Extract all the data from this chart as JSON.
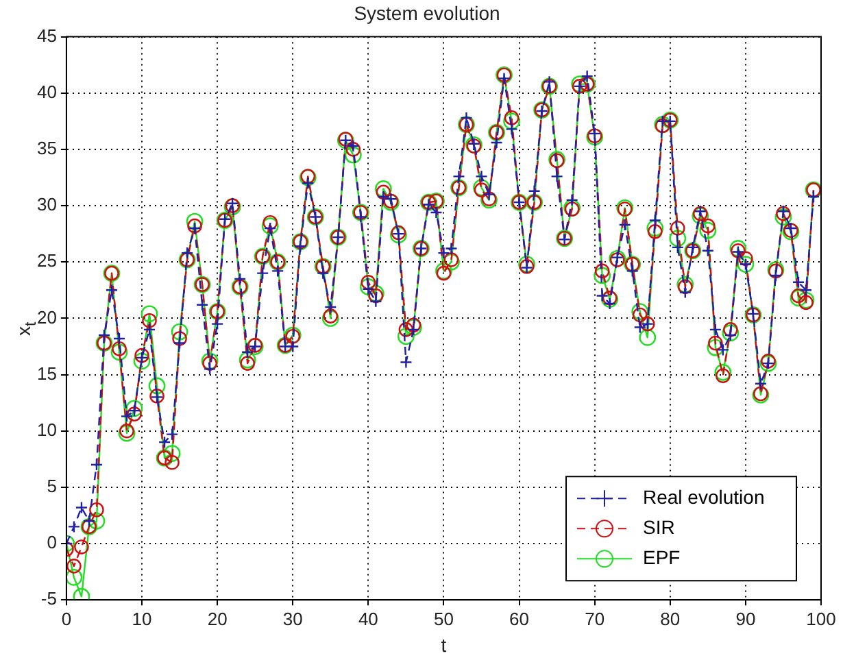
{
  "chart_data": {
    "type": "line",
    "title": "System evolution",
    "xlabel": "t",
    "ylabel": "x$_{t}$",
    "x": [
      0,
      1,
      2,
      3,
      4,
      5,
      6,
      7,
      8,
      9,
      10,
      11,
      12,
      13,
      14,
      15,
      16,
      17,
      18,
      19,
      20,
      21,
      22,
      23,
      24,
      25,
      26,
      27,
      28,
      29,
      30,
      31,
      32,
      33,
      34,
      35,
      36,
      37,
      38,
      39,
      40,
      41,
      42,
      43,
      44,
      45,
      46,
      47,
      48,
      49,
      50,
      51,
      52,
      53,
      54,
      55,
      56,
      57,
      58,
      59,
      60,
      61,
      62,
      63,
      64,
      65,
      66,
      67,
      68,
      69,
      70,
      71,
      72,
      73,
      74,
      75,
      76,
      77,
      78,
      79,
      80,
      81,
      82,
      83,
      84,
      85,
      86,
      87,
      88,
      89,
      90,
      91,
      92,
      93,
      94,
      95,
      96,
      97,
      98,
      99
    ],
    "series": [
      {
        "name": "Real evolution",
        "color": "#1f1fa8",
        "marker": "cross",
        "line_style": "dashed",
        "values": [
          0,
          1.5,
          3.2,
          2,
          7,
          18.5,
          22.5,
          18.2,
          11.3,
          11.8,
          16.5,
          19,
          13,
          9,
          9.7,
          17.8,
          25.8,
          28,
          21.2,
          15.5,
          19.5,
          28.8,
          30.2,
          23.5,
          17,
          17.5,
          24,
          28,
          24.2,
          17.5,
          17.5,
          26.4,
          32,
          29,
          24,
          21,
          27.2,
          35.8,
          35.3,
          29,
          22.6,
          21.5,
          30.8,
          30.6,
          27.5,
          16.1,
          19,
          26.2,
          30.1,
          29.4,
          25.8,
          26.2,
          32.6,
          37.8,
          35.5,
          32.6,
          31,
          35.6,
          41.3,
          36.8,
          30.3,
          24.5,
          31.3,
          38.4,
          41,
          32.6,
          27,
          30.5,
          40.6,
          41.5,
          36.4,
          22,
          21.3,
          25.4,
          28.3,
          24.2,
          19.2,
          19.5,
          28.7,
          37.5,
          37.5,
          26.3,
          22.3,
          26.3,
          29.5,
          26,
          19,
          17.2,
          18.5,
          25.9,
          24.8,
          20.4,
          14.2,
          16,
          23.8,
          29.5,
          28,
          23.2,
          22.5,
          30.8
        ]
      },
      {
        "name": "SIR",
        "color": "#d01010",
        "marker": "circle",
        "line_style": "dashed",
        "values": [
          -0.5,
          -2,
          -0.3,
          1.5,
          3,
          17.8,
          24,
          17.3,
          10,
          11.5,
          16.7,
          19.8,
          13.1,
          7.6,
          7.2,
          18.2,
          25.2,
          28.2,
          23,
          16,
          20.6,
          28.7,
          30,
          22.8,
          16,
          17.6,
          25.5,
          28.5,
          25,
          17.6,
          18.4,
          26.8,
          32.6,
          29,
          24.6,
          20.2,
          27.2,
          35.9,
          35,
          29.4,
          23.2,
          22,
          31.2,
          30.4,
          27.6,
          19,
          19.4,
          26.2,
          30.3,
          30.4,
          24,
          25.2,
          31.6,
          37.2,
          35.3,
          31.4,
          30.6,
          36.5,
          41.6,
          37.8,
          30.3,
          24.6,
          30.3,
          38.5,
          40.6,
          34,
          27.1,
          29.7,
          40.6,
          40.8,
          36.2,
          24.2,
          21.8,
          25.2,
          29.7,
          24.8,
          20.3,
          19.5,
          27.7,
          37.1,
          37.6,
          28,
          22.8,
          26,
          29.3,
          28.2,
          17.8,
          14.9,
          19,
          26,
          25.3,
          20.3,
          13.3,
          16.2,
          24.2,
          29.3,
          27.8,
          22,
          21.4,
          31.4
        ]
      },
      {
        "name": "EPF",
        "color": "#22dd22",
        "marker": "circle",
        "line_style": "solid",
        "values": [
          0,
          -3,
          -4.7,
          1.5,
          2,
          17.8,
          24,
          17,
          9.8,
          12,
          16.2,
          20.4,
          14,
          7.6,
          8,
          18.8,
          25.2,
          28.6,
          23,
          16.2,
          20.6,
          28.7,
          29.9,
          22.8,
          16.3,
          17.5,
          25.5,
          28.2,
          25,
          17.6,
          18.5,
          26.8,
          32.5,
          29,
          24.6,
          20,
          27.2,
          35.8,
          34.5,
          29.4,
          22.8,
          22.2,
          31.5,
          30.3,
          27.4,
          18.4,
          19.2,
          26.2,
          30.3,
          30.4,
          24.2,
          25,
          31.6,
          37.2,
          35.4,
          31.6,
          30.5,
          36.5,
          41.6,
          37.5,
          30.3,
          24.8,
          30.3,
          38.5,
          40.6,
          34.1,
          27.1,
          29.8,
          40.8,
          40.8,
          36.1,
          23.8,
          21.7,
          25.3,
          29.8,
          24.8,
          20.6,
          18.3,
          28,
          37.2,
          37.6,
          27.1,
          23,
          26,
          29.1,
          27.8,
          17.4,
          15.2,
          18.7,
          26.2,
          24.8,
          20.3,
          13.2,
          16,
          24.3,
          29,
          27.7,
          21.8,
          21.6,
          31.4
        ]
      }
    ],
    "xlim": [
      0,
      100
    ],
    "xticks": [
      0,
      10,
      20,
      30,
      40,
      50,
      60,
      70,
      80,
      90,
      100
    ],
    "ylim": [
      -5,
      45
    ],
    "yticks": [
      -5,
      0,
      5,
      10,
      15,
      20,
      25,
      30,
      35,
      40,
      45
    ],
    "grid": true,
    "legend": "bottom right"
  }
}
